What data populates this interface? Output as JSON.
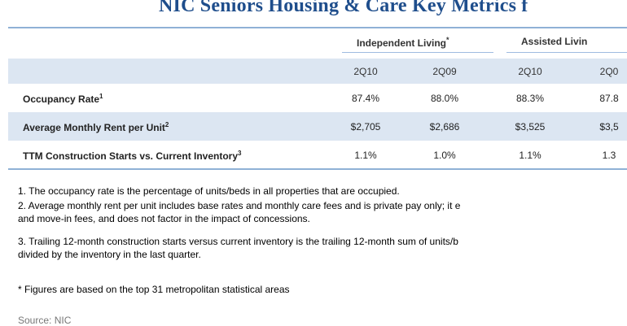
{
  "title": "NIC Seniors Housing & Care Key Metrics f",
  "groups": {
    "independent": {
      "label": "Independent Living",
      "mark": "*"
    },
    "assisted": {
      "label": "Assisted Livin"
    }
  },
  "periods": [
    "2Q10",
    "2Q09",
    "2Q10",
    "2Q0"
  ],
  "rows": [
    {
      "label": "Occupancy Rate",
      "sup": "1",
      "values": [
        "87.4%",
        "88.0%",
        "88.3%",
        "87.8"
      ]
    },
    {
      "label": "Average Monthly Rent per Unit",
      "sup": "2",
      "values": [
        "$2,705",
        "$2,686",
        "$3,525",
        "$3,5"
      ]
    },
    {
      "label": "TTM Construction Starts vs. Current Inventory",
      "sup": "3",
      "values": [
        "1.1%",
        "1.0%",
        "1.1%",
        "1.3"
      ]
    }
  ],
  "notes": {
    "n1": "1. The occupancy rate is the percentage of units/beds in all properties that are occupied.",
    "n2a": "2. Average monthly rent per unit includes base rates and monthly care fees and is private pay only; it e",
    "n2b": "and move-in fees, and does not factor in the impact of concessions.",
    "n3a": "3. Trailing 12-month construction starts versus current inventory is the trailing 12-month sum of units/b",
    "n3b": "divided by the inventory in the last quarter.",
    "star": "* Figures are based on the top 31 metropolitan statistical areas"
  },
  "source": "Source: NIC",
  "colors": {
    "title": "#1f4e8c",
    "band": "#dce6f2",
    "rule": "#8fb1d6"
  }
}
